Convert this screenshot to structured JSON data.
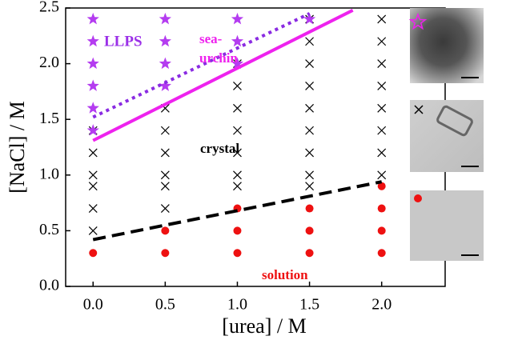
{
  "chart_data": {
    "type": "scatter",
    "xlabel": "[urea] / M",
    "ylabel": "[NaCl] / M",
    "xlim": [
      -0.19,
      2.44
    ],
    "ylim": [
      0,
      2.5
    ],
    "xticks": [
      {
        "value": 0,
        "label": "0.0"
      },
      {
        "value": 0.5,
        "label": "0.5"
      },
      {
        "value": 1,
        "label": "1.0"
      },
      {
        "value": 1.5,
        "label": "1.5"
      },
      {
        "value": 2,
        "label": "2.0"
      }
    ],
    "yticks": [
      {
        "value": 0,
        "label": "0.0"
      },
      {
        "value": 0.5,
        "label": "0.5"
      },
      {
        "value": 1,
        "label": "1.0"
      },
      {
        "value": 1.5,
        "label": "1.5"
      },
      {
        "value": 2,
        "label": "2.0"
      },
      {
        "value": 2.5,
        "label": "2.5"
      }
    ],
    "series": [
      {
        "marker": "x",
        "color": "#000000",
        "x": [
          0,
          0,
          0,
          0,
          0,
          0,
          0.5,
          0.5,
          0.5,
          0.5,
          0.5,
          0.5,
          1,
          1,
          1,
          1,
          1,
          1,
          1,
          1.5,
          1.5,
          1.5,
          1.5,
          1.5,
          1.5,
          1.5,
          1.5,
          1.5,
          2,
          2,
          2,
          2,
          2,
          2,
          2,
          2
        ],
        "values": [
          1.4,
          1.2,
          1.0,
          0.9,
          0.7,
          0.5,
          1.6,
          1.4,
          1.2,
          1.0,
          0.9,
          0.7,
          1.8,
          1.6,
          1.4,
          1.2,
          1.0,
          0.9,
          2.0,
          2.2,
          2.0,
          1.8,
          1.6,
          1.4,
          1.2,
          1.0,
          0.9,
          2.4,
          2.4,
          2.2,
          2.0,
          1.8,
          1.6,
          1.4,
          1.2,
          1.0
        ]
      },
      {
        "marker": "star",
        "color": "#b43cf0",
        "x": [
          0,
          0,
          0,
          0,
          0,
          0,
          0.5,
          0.5,
          0.5,
          0.5,
          1,
          1,
          1,
          1.5
        ],
        "values": [
          2.4,
          2.2,
          2.0,
          1.8,
          1.6,
          1.4,
          2.4,
          2.2,
          2.0,
          1.8,
          2.4,
          2.2,
          2.0,
          2.4
        ]
      },
      {
        "marker": "circle",
        "color": "#ee1111",
        "x": [
          0,
          0.5,
          0.5,
          1,
          1,
          1,
          1.5,
          1.5,
          1.5,
          2,
          2,
          2,
          2
        ],
        "values": [
          0.3,
          0.5,
          0.3,
          0.7,
          0.5,
          0.3,
          0.7,
          0.5,
          0.3,
          0.9,
          0.7,
          0.5,
          0.3
        ]
      },
      {
        "marker": "line",
        "dash": "dotted",
        "color": "#8a2be2",
        "x": [
          0,
          1.5
        ],
        "values": [
          1.52,
          2.45
        ]
      },
      {
        "marker": "line",
        "dash": "solid",
        "color": "#ee22ee",
        "x": [
          0,
          1.8
        ],
        "values": [
          1.31,
          2.48
        ]
      },
      {
        "marker": "line",
        "dash": "dashed",
        "color": "#000000",
        "x": [
          0,
          2.0
        ],
        "values": [
          0.42,
          0.94
        ]
      }
    ],
    "annotations": [
      {
        "text": "LLPS",
        "color": "#9b30e8"
      },
      {
        "text": "sea-",
        "color": "#ee22ee"
      },
      {
        "text": "urchin",
        "color": "#ee22ee"
      },
      {
        "text": "crystal",
        "color": "#000000"
      },
      {
        "text": "solution",
        "color": "#ee1111"
      }
    ]
  }
}
